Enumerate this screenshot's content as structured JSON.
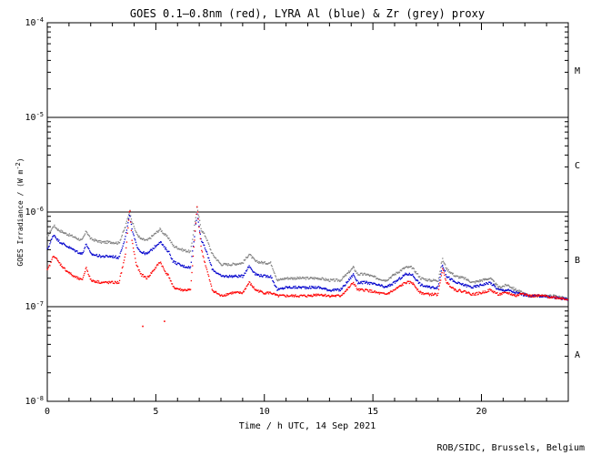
{
  "chart_data": {
    "type": "scatter",
    "title": "GOES 0.1–0.8nm (red), LYRA Al (blue) & Zr (grey) proxy",
    "xlabel": "Time / h UTC, 14 Sep 2021",
    "ylabel": "GOES Irradiance / (W m",
    "ylabel_exp": "-2",
    "ylabel_close": ")",
    "credit": "ROB/SIDC, Brussels, Belgium",
    "xlim": [
      0,
      24
    ],
    "ylim": [
      1e-08,
      0.0001
    ],
    "yscale": "log",
    "grid": "horizontal lines at flare class boundaries",
    "x_ticks": [
      {
        "value": 0,
        "label": "0"
      },
      {
        "value": 5,
        "label": "5"
      },
      {
        "value": 10,
        "label": "10"
      },
      {
        "value": 15,
        "label": "15"
      },
      {
        "value": 20,
        "label": "20"
      }
    ],
    "y_ticks": [
      {
        "exp": -4,
        "base": "10",
        "sup": "-4"
      },
      {
        "exp": -5,
        "base": "10",
        "sup": "-5"
      },
      {
        "exp": -6,
        "base": "10",
        "sup": "-6"
      },
      {
        "exp": -7,
        "base": "10",
        "sup": "-7"
      },
      {
        "exp": -8,
        "base": "10",
        "sup": "-8"
      }
    ],
    "class_labels": [
      {
        "label": "M",
        "value": 3.16e-05
      },
      {
        "label": "C",
        "value": 3.16e-06
      },
      {
        "label": "B",
        "value": 3.16e-07
      },
      {
        "label": "A",
        "value": 3.16e-08
      }
    ],
    "hlines": [
      1e-05,
      1e-06,
      1e-07
    ],
    "series": [
      {
        "id": "zr",
        "color": "#808080",
        "x": [
          0,
          0.3,
          0.5,
          0.8,
          1.2,
          1.6,
          1.8,
          2.0,
          2.5,
          3.0,
          3.3,
          3.6,
          3.8,
          3.9,
          4.1,
          4.3,
          4.6,
          5.0,
          5.2,
          5.4,
          5.6,
          5.8,
          6.2,
          6.6,
          6.9,
          7.1,
          7.3,
          7.6,
          8.0,
          8.5,
          9.0,
          9.3,
          9.6,
          10.0,
          10.3,
          10.6,
          11.0,
          11.5,
          12.0,
          12.5,
          13.0,
          13.5,
          13.8,
          14.1,
          14.3,
          14.7,
          15.2,
          15.6,
          16.0,
          16.5,
          16.8,
          17.2,
          17.6,
          18.0,
          18.2,
          18.4,
          18.8,
          19.2,
          19.6,
          20.0,
          20.4,
          20.8,
          21.2,
          21.6,
          21.9,
          22.2,
          22.8,
          23.4,
          24.0
        ],
        "y": [
          5.5e-07,
          7.2e-07,
          6.5e-07,
          6e-07,
          5.5e-07,
          5e-07,
          6.3e-07,
          5.2e-07,
          4.8e-07,
          4.8e-07,
          4.7e-07,
          7e-07,
          1.05e-06,
          8e-07,
          6e-07,
          5.2e-07,
          5e-07,
          6e-07,
          6.6e-07,
          5.8e-07,
          5.3e-07,
          4.4e-07,
          4e-07,
          3.8e-07,
          1.1e-06,
          6.5e-07,
          5.5e-07,
          3.6e-07,
          2.8e-07,
          2.8e-07,
          2.9e-07,
          3.6e-07,
          3e-07,
          2.9e-07,
          2.9e-07,
          1.9e-07,
          2e-07,
          2e-07,
          2e-07,
          2e-07,
          1.9e-07,
          1.9e-07,
          2.2e-07,
          2.6e-07,
          2.2e-07,
          2.2e-07,
          2e-07,
          1.9e-07,
          2.2e-07,
          2.6e-07,
          2.6e-07,
          2e-07,
          1.9e-07,
          1.9e-07,
          3.2e-07,
          2.5e-07,
          2.1e-07,
          2e-07,
          1.8e-07,
          1.9e-07,
          2e-07,
          1.6e-07,
          1.7e-07,
          1.5e-07,
          1.4e-07,
          1.3e-07,
          1.3e-07,
          1.3e-07,
          1.2e-07
        ]
      },
      {
        "id": "al",
        "color": "#0000cc",
        "x": [
          0,
          0.3,
          0.5,
          0.8,
          1.2,
          1.6,
          1.8,
          2.0,
          2.5,
          3.0,
          3.3,
          3.6,
          3.8,
          3.9,
          4.1,
          4.3,
          4.6,
          5.0,
          5.2,
          5.4,
          5.6,
          5.8,
          6.2,
          6.6,
          6.9,
          7.1,
          7.3,
          7.6,
          8.0,
          8.5,
          9.0,
          9.3,
          9.6,
          10.0,
          10.3,
          10.6,
          11.0,
          11.5,
          12.0,
          12.5,
          13.0,
          13.5,
          13.8,
          14.1,
          14.3,
          14.7,
          15.2,
          15.6,
          16.0,
          16.5,
          16.8,
          17.2,
          17.6,
          18.0,
          18.2,
          18.4,
          18.8,
          19.2,
          19.6,
          20.0,
          20.4,
          20.8,
          21.2,
          21.6,
          21.9,
          22.2,
          22.8,
          23.4,
          24.0
        ],
        "y": [
          4e-07,
          5.8e-07,
          5e-07,
          4.5e-07,
          4e-07,
          3.6e-07,
          4.6e-07,
          3.6e-07,
          3.4e-07,
          3.4e-07,
          3.3e-07,
          5.5e-07,
          9.5e-07,
          6.5e-07,
          4.5e-07,
          3.8e-07,
          3.6e-07,
          4.4e-07,
          4.9e-07,
          4.2e-07,
          3.8e-07,
          3e-07,
          2.7e-07,
          2.6e-07,
          9.5e-07,
          5e-07,
          4e-07,
          2.5e-07,
          2.1e-07,
          2.1e-07,
          2.1e-07,
          2.7e-07,
          2.2e-07,
          2.1e-07,
          2.1e-07,
          1.5e-07,
          1.6e-07,
          1.6e-07,
          1.6e-07,
          1.6e-07,
          1.5e-07,
          1.5e-07,
          1.8e-07,
          2.2e-07,
          1.8e-07,
          1.8e-07,
          1.7e-07,
          1.6e-07,
          1.8e-07,
          2.2e-07,
          2.2e-07,
          1.7e-07,
          1.6e-07,
          1.6e-07,
          2.8e-07,
          2.1e-07,
          1.8e-07,
          1.7e-07,
          1.6e-07,
          1.7e-07,
          1.8e-07,
          1.5e-07,
          1.5e-07,
          1.4e-07,
          1.35e-07,
          1.3e-07,
          1.3e-07,
          1.25e-07,
          1.2e-07
        ]
      },
      {
        "id": "goes",
        "color": "#ff0000",
        "x": [
          0,
          0.3,
          0.5,
          0.8,
          1.2,
          1.6,
          1.8,
          2.0,
          2.5,
          3.0,
          3.3,
          3.6,
          3.8,
          3.9,
          4.1,
          4.3,
          4.6,
          5.0,
          5.2,
          5.4,
          5.6,
          5.8,
          6.2,
          6.6,
          6.9,
          7.1,
          7.3,
          7.6,
          8.0,
          8.5,
          9.0,
          9.3,
          9.6,
          10.0,
          10.3,
          10.6,
          11.0,
          11.5,
          12.0,
          12.5,
          13.0,
          13.5,
          13.8,
          14.1,
          14.3,
          14.7,
          15.2,
          15.6,
          16.0,
          16.5,
          16.8,
          17.2,
          17.6,
          18.0,
          18.2,
          18.4,
          18.8,
          19.2,
          19.6,
          20.0,
          20.4,
          20.8,
          21.2,
          21.6,
          21.9,
          22.2,
          22.8,
          23.4,
          24.0
        ],
        "y": [
          2.4e-07,
          3.5e-07,
          3e-07,
          2.5e-07,
          2.1e-07,
          1.9e-07,
          2.6e-07,
          1.9e-07,
          1.8e-07,
          1.8e-07,
          1.8e-07,
          3.5e-07,
          1.1e-06,
          5e-07,
          2.8e-07,
          2.2e-07,
          2e-07,
          2.6e-07,
          3e-07,
          2.4e-07,
          2.1e-07,
          1.6e-07,
          1.5e-07,
          1.5e-07,
          1.15e-06,
          4e-07,
          2.7e-07,
          1.5e-07,
          1.3e-07,
          1.4e-07,
          1.4e-07,
          1.8e-07,
          1.5e-07,
          1.4e-07,
          1.4e-07,
          1.3e-07,
          1.3e-07,
          1.3e-07,
          1.3e-07,
          1.35e-07,
          1.3e-07,
          1.3e-07,
          1.5e-07,
          1.8e-07,
          1.5e-07,
          1.5e-07,
          1.4e-07,
          1.35e-07,
          1.5e-07,
          1.8e-07,
          1.8e-07,
          1.4e-07,
          1.35e-07,
          1.35e-07,
          2.5e-07,
          1.8e-07,
          1.5e-07,
          1.45e-07,
          1.35e-07,
          1.4e-07,
          1.5e-07,
          1.35e-07,
          1.4e-07,
          1.3e-07,
          1.4e-07,
          1.3e-07,
          1.3e-07,
          1.25e-07,
          1.2e-07
        ]
      }
    ],
    "isolated_points": [
      {
        "x": 4.4,
        "y": 6.2e-08,
        "color": "#ff0000"
      },
      {
        "x": 5.4,
        "y": 7e-08,
        "color": "#ff0000"
      }
    ]
  }
}
